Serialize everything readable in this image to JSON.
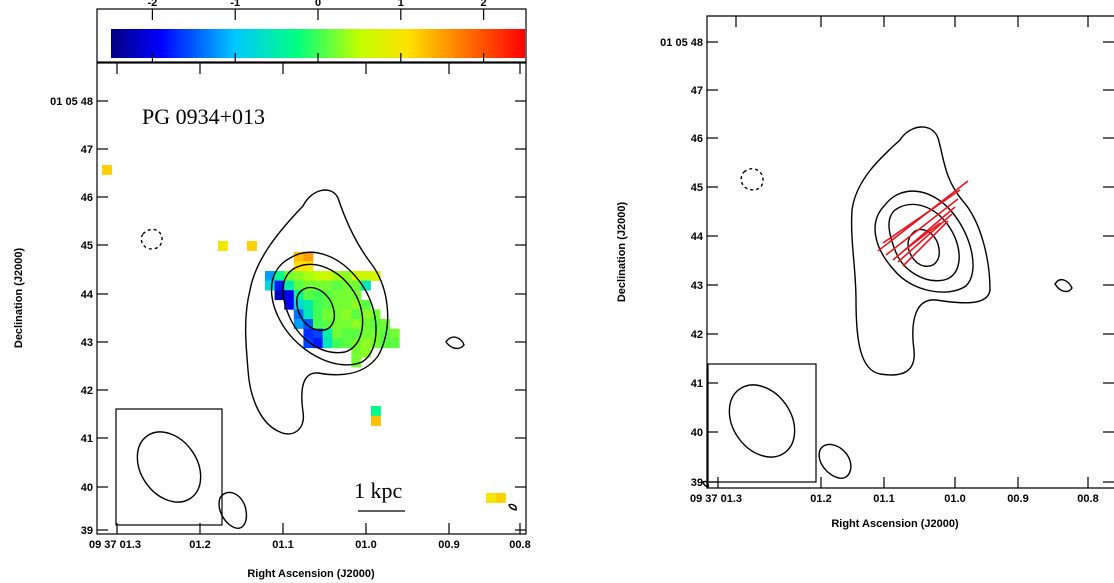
{
  "colors": {
    "contour": "#000000",
    "vectors": "#e8141c",
    "frame": "#000000"
  },
  "chart_data": [
    {
      "type": "heatmap",
      "panel": "left",
      "title": "",
      "source_label": "PG 0934+013",
      "scale_bar_label": "1 kpc",
      "xlabel": "Right Ascension (J2000)",
      "ylabel": "Declination (J2000)",
      "x_tick_labels": [
        "09 37 01.3",
        "01.2",
        "01.1",
        "01.0",
        "00.9",
        "00.8"
      ],
      "y_tick_labels": [
        "39",
        "40",
        "41",
        "42",
        "43",
        "44",
        "45",
        "46",
        "47",
        "01 05 48"
      ],
      "colorbar": {
        "range": [
          -2.5,
          2.5
        ],
        "tick_labels": [
          "-2",
          "-1",
          "0",
          "1",
          "2"
        ],
        "tick_values": [
          -2,
          -1,
          0,
          1,
          2
        ]
      },
      "contours": "solid contours around the source core; one dashed negative contour near 01.27, 45.2",
      "beam": "ellipse in lower-left box",
      "grid": false
    },
    {
      "type": "scatter",
      "panel": "right",
      "title": "",
      "xlabel": "Right Ascension (J2000)",
      "ylabel": "Declination (J2000)",
      "x_tick_labels": [
        "09 37 01.3",
        "01.2",
        "01.1",
        "01.0",
        "00.9",
        "00.8"
      ],
      "y_tick_labels": [
        "39",
        "40",
        "41",
        "42",
        "43",
        "44",
        "45",
        "46",
        "47",
        "01 05 48"
      ],
      "vectors": "red polarization vectors across the core",
      "contours": "solid contours; one dashed negative contour near 01.27, 45.2",
      "beam": "ellipse in lower-left box",
      "grid": false
    }
  ]
}
